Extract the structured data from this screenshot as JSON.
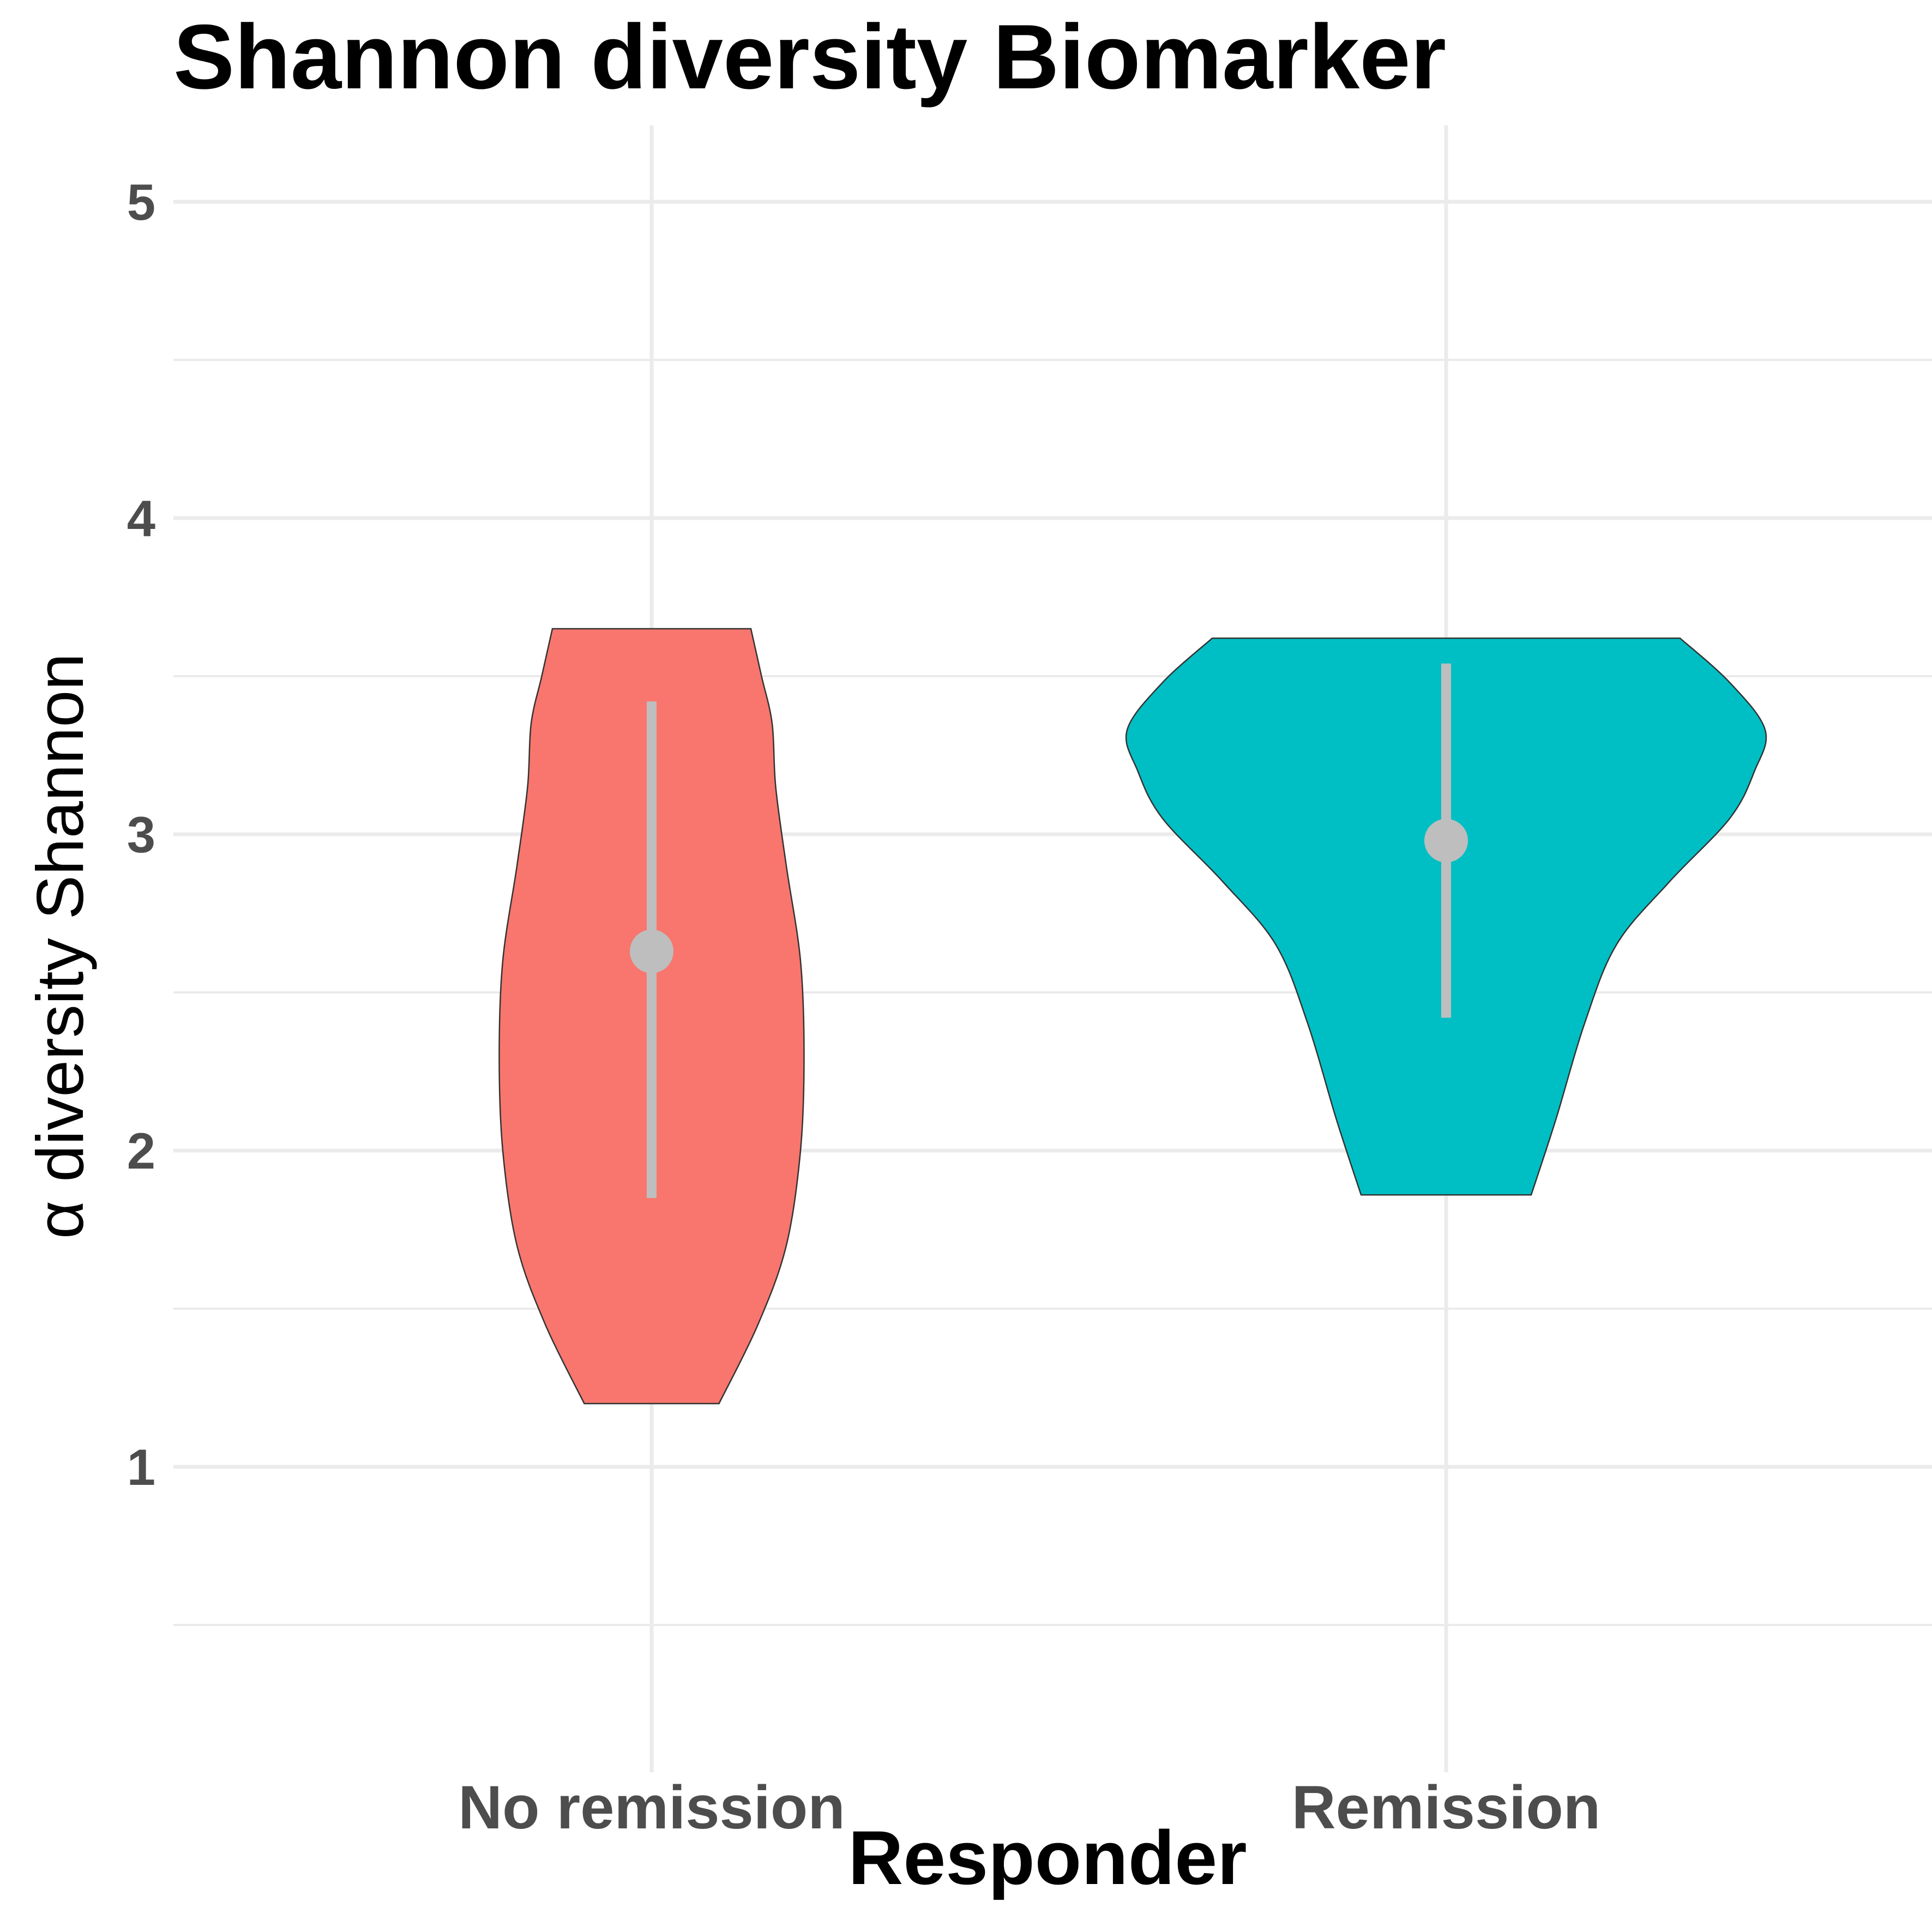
{
  "chart_data": {
    "type": "violin",
    "title": "Shannon diversity Biomarker",
    "xlabel": "Responder",
    "ylabel": "α diversity Shannon",
    "ylim": [
      0.3,
      5.2
    ],
    "yticks": [
      1,
      2,
      3,
      4,
      5
    ],
    "grid": true,
    "categories": [
      "No remission",
      "Remission"
    ],
    "series": [
      {
        "category": "No remission",
        "color": "#F8766D",
        "min": 1.2,
        "max": 3.65,
        "mean": 2.63,
        "lower": 1.85,
        "upper": 3.42,
        "density_profile": [
          [
            1.2,
            0.19
          ],
          [
            1.45,
            0.3
          ],
          [
            1.7,
            0.38
          ],
          [
            2.0,
            0.42
          ],
          [
            2.3,
            0.43
          ],
          [
            2.6,
            0.42
          ],
          [
            2.9,
            0.38
          ],
          [
            3.15,
            0.35
          ],
          [
            3.35,
            0.34
          ],
          [
            3.5,
            0.31
          ],
          [
            3.65,
            0.28
          ]
        ]
      },
      {
        "category": "Remission",
        "color": "#00BFC4",
        "min": 1.86,
        "max": 3.62,
        "mean": 2.98,
        "lower": 2.42,
        "upper": 3.54,
        "density_profile": [
          [
            1.86,
            0.24
          ],
          [
            2.1,
            0.31
          ],
          [
            2.4,
            0.39
          ],
          [
            2.65,
            0.48
          ],
          [
            2.85,
            0.63
          ],
          [
            3.05,
            0.8
          ],
          [
            3.2,
            0.87
          ],
          [
            3.33,
            0.9
          ],
          [
            3.48,
            0.8
          ],
          [
            3.62,
            0.66
          ]
        ]
      }
    ]
  }
}
